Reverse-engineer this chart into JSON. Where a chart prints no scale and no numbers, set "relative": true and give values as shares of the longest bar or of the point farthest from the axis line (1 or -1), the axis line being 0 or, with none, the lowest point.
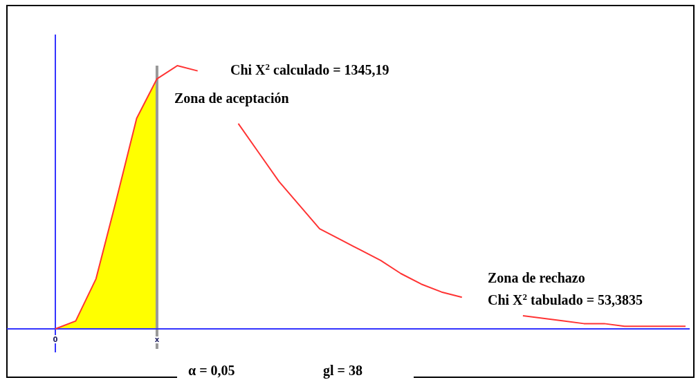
{
  "chart_data": {
    "type": "line",
    "relative": true,
    "categories": [
      "0",
      null,
      null,
      null,
      null,
      "x",
      null,
      null,
      null,
      null,
      null,
      null,
      null,
      null,
      null,
      null,
      null,
      null,
      null,
      null,
      null,
      null,
      null,
      null,
      null,
      null,
      null,
      null,
      null,
      null,
      null,
      null
    ],
    "series": [
      {
        "type": "area",
        "color": "#ffff00",
        "values": [
          0,
          0.03,
          0.19,
          0.49,
          0.8,
          0.95,
          null,
          null,
          null,
          null,
          null,
          null,
          null,
          null,
          null,
          null,
          null,
          null,
          null,
          null,
          null,
          null,
          null,
          null,
          null,
          null,
          null,
          null,
          null,
          null,
          null,
          null
        ]
      },
      {
        "color": "#ff3333",
        "values": [
          0,
          0.03,
          0.19,
          0.49,
          0.8,
          0.95,
          1,
          0.98,
          null,
          0.78,
          0.67,
          0.56,
          0.47,
          0.38,
          0.34,
          0.3,
          0.26,
          0.21,
          0.17,
          0.14,
          0.12,
          null,
          null,
          0.05,
          0.04,
          0.03,
          0.02,
          0.02,
          0.01,
          0.01,
          0.01,
          0.01
        ]
      }
    ],
    "ref_lines": [
      {
        "axis": "x",
        "value": "x",
        "color": "#999999"
      }
    ],
    "annotations": [
      "Chi X$^{2}$ calculado = 1345,19",
      "Zona de aceptación",
      "Zona de rechazo",
      "Chi X$^{2}$ tabulado = 53,3835",
      "α = 0,05",
      "gl = 38"
    ]
  }
}
